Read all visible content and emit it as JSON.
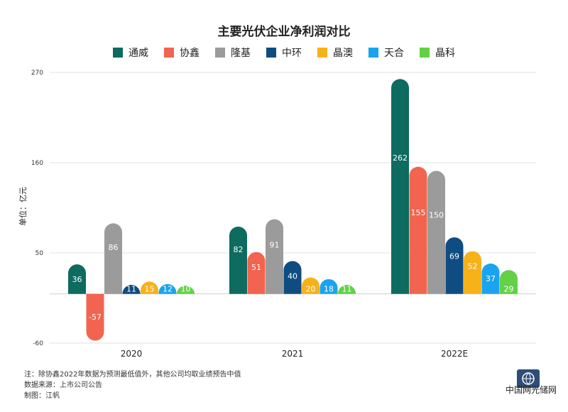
{
  "chart_data": {
    "type": "bar",
    "title": "主要光伏企业净利润对比",
    "ylabel": "单位：亿元",
    "xlabel": "",
    "categories": [
      "2020",
      "2021",
      "2022E"
    ],
    "yticks": [
      270,
      160,
      50,
      -60
    ],
    "ylim": [
      -60,
      270
    ],
    "grid": true,
    "legend_position": "top",
    "series": [
      {
        "name": "通威",
        "color": "#0d6b5f",
        "values": [
          36,
          82,
          262
        ]
      },
      {
        "name": "协鑫",
        "color": "#f26450",
        "values": [
          -57,
          51,
          155
        ]
      },
      {
        "name": "隆基",
        "color": "#9b9b9b",
        "values": [
          86,
          91,
          150
        ]
      },
      {
        "name": "中环",
        "color": "#0f4c81",
        "values": [
          11,
          40,
          69
        ]
      },
      {
        "name": "晶澳",
        "color": "#f7b21a",
        "values": [
          15,
          20,
          52
        ]
      },
      {
        "name": "天合",
        "color": "#1aa3ef",
        "values": [
          12,
          18,
          37
        ]
      },
      {
        "name": "晶科",
        "color": "#62d146",
        "values": [
          10,
          11,
          29
        ]
      }
    ]
  },
  "notes": {
    "note": "注：除协鑫2022年数据为预测最低值外，其他公司均取业绩预告中值",
    "source": "数据来源：上市公司公告",
    "author": "制图：江帆"
  },
  "watermark": "中国网光储网",
  "logo_icon": "globe-logo-icon"
}
